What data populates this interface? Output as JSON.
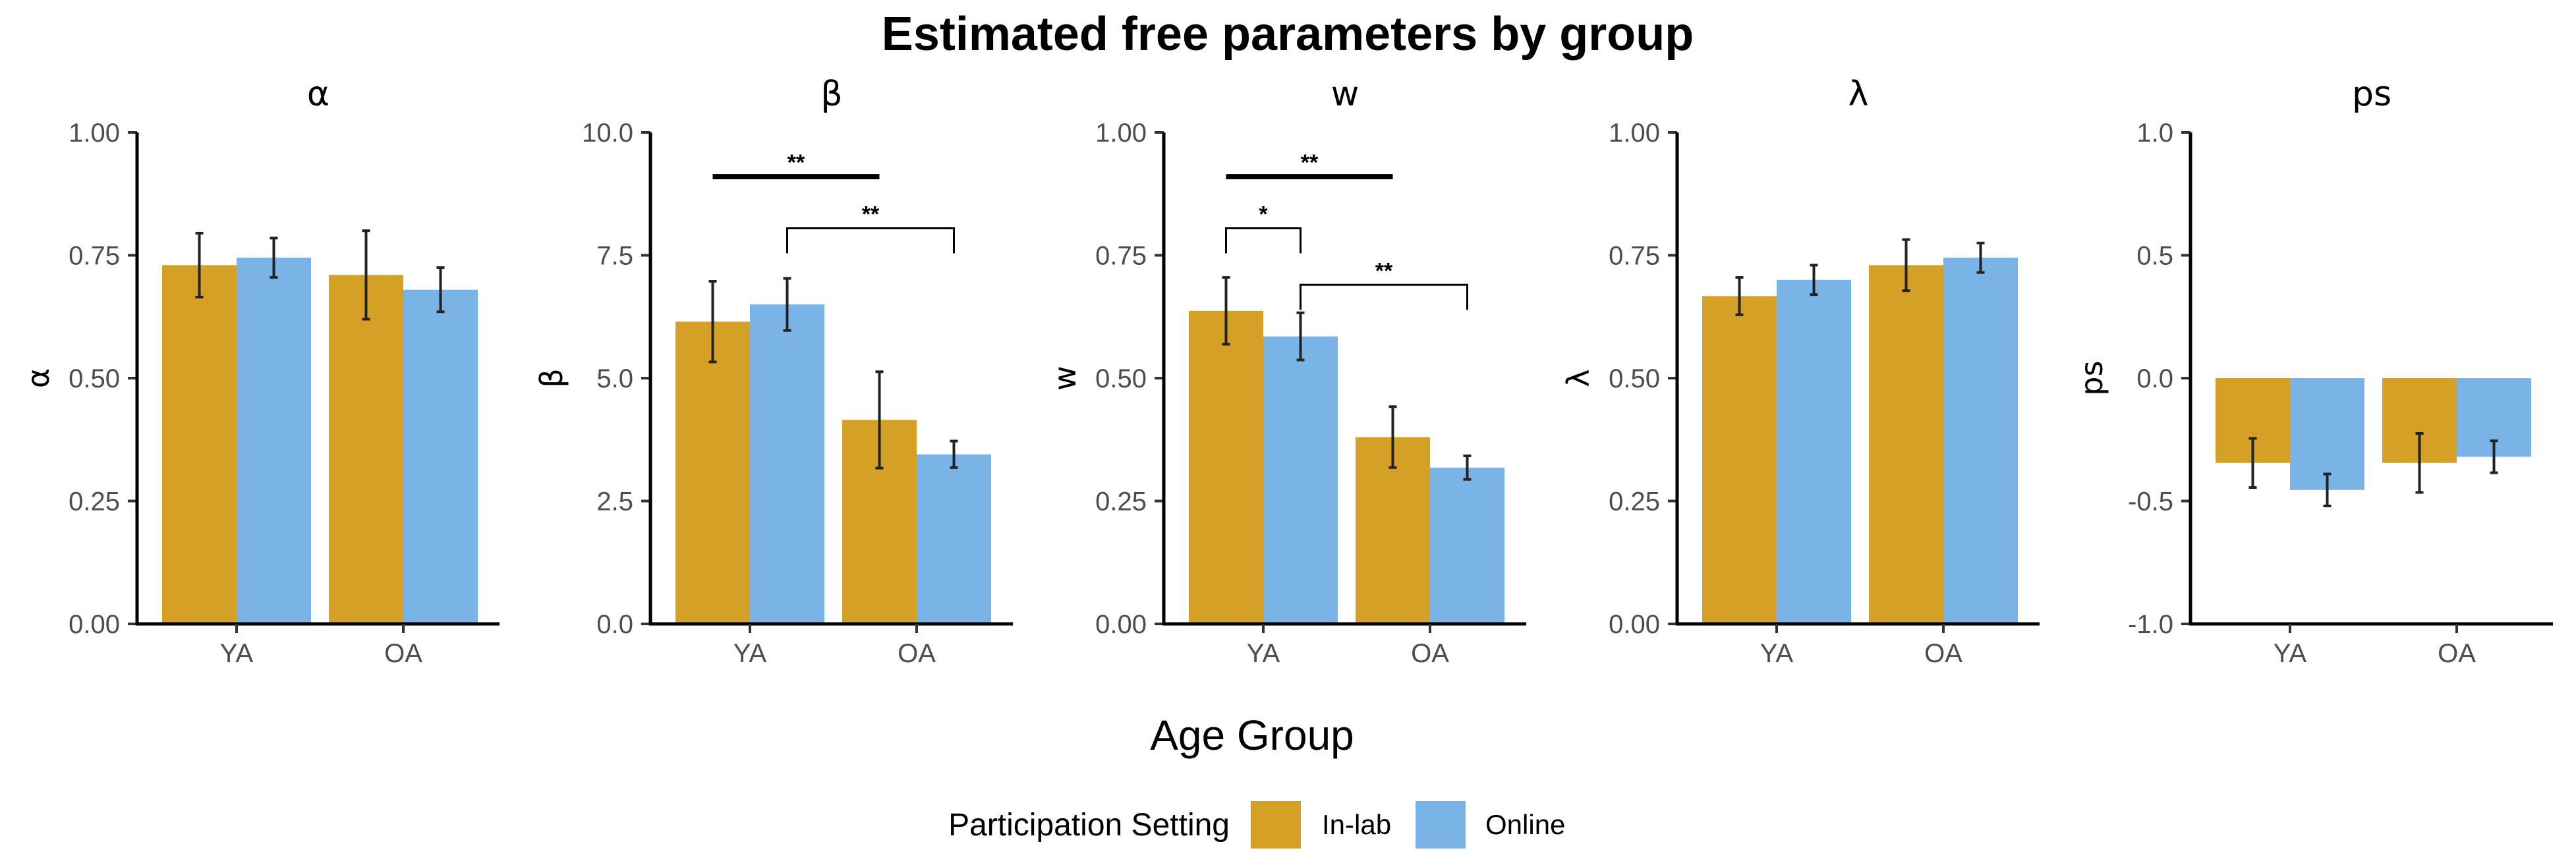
{
  "chart_data": {
    "title": "Estimated free parameters by group",
    "type": "bar",
    "xlabel": "Age Group",
    "legend": {
      "title": "Participation Setting",
      "placement": "bottom",
      "entries": [
        {
          "name": "In-lab",
          "color": "#D4A025"
        },
        {
          "name": "Online",
          "color": "#7AB3E6"
        }
      ]
    },
    "panels": [
      {
        "title": "α",
        "ylabel": "α",
        "ylim": [
          0,
          1
        ],
        "yticks": [
          "0.00",
          "0.25",
          "0.50",
          "0.75",
          "1.00"
        ],
        "categories": [
          "YA",
          "OA"
        ],
        "series": [
          {
            "name": "In-lab",
            "values": [
              0.73,
              0.71
            ],
            "err": [
              0.065,
              0.09
            ]
          },
          {
            "name": "Online",
            "values": [
              0.745,
              0.68
            ],
            "err": [
              0.04,
              0.045
            ]
          }
        ],
        "annotations": []
      },
      {
        "title": "β",
        "ylabel": "β",
        "ylim": [
          0,
          10
        ],
        "yticks": [
          "0.0",
          "2.5",
          "5.0",
          "7.5",
          "10.0"
        ],
        "categories": [
          "YA",
          "OA"
        ],
        "series": [
          {
            "name": "In-lab",
            "values": [
              6.15,
              4.15
            ],
            "err": [
              0.82,
              0.98
            ]
          },
          {
            "name": "Online",
            "values": [
              6.5,
              3.45
            ],
            "err": [
              0.53,
              0.27
            ]
          }
        ],
        "annotations": [
          {
            "label": "**",
            "from": [
              0,
              0
            ],
            "to": [
              1,
              0
            ],
            "y": 9.1,
            "style": "thick"
          },
          {
            "label": "**",
            "from": [
              0,
              1
            ],
            "to": [
              1,
              1
            ],
            "y": 8.05,
            "style": "bracket"
          }
        ]
      },
      {
        "title": "w",
        "ylabel": "w",
        "ylim": [
          0,
          1
        ],
        "yticks": [
          "0.00",
          "0.25",
          "0.50",
          "0.75",
          "1.00"
        ],
        "categories": [
          "YA",
          "OA"
        ],
        "series": [
          {
            "name": "In-lab",
            "values": [
              0.637,
              0.38
            ],
            "err": [
              0.068,
              0.062
            ]
          },
          {
            "name": "Online",
            "values": [
              0.585,
              0.318
            ],
            "err": [
              0.048,
              0.024
            ]
          }
        ],
        "annotations": [
          {
            "label": "**",
            "from": [
              0,
              0
            ],
            "to": [
              1,
              0
            ],
            "y": 0.91,
            "style": "thick"
          },
          {
            "label": "*",
            "from": [
              0,
              0
            ],
            "to": [
              0,
              1
            ],
            "y": 0.805,
            "style": "bracket"
          },
          {
            "label": "**",
            "from": [
              0,
              1
            ],
            "to": [
              1,
              1
            ],
            "y": 0.69,
            "style": "bracket"
          }
        ]
      },
      {
        "title": "λ",
        "ylabel": "λ",
        "ylim": [
          0,
          1
        ],
        "yticks": [
          "0.00",
          "0.25",
          "0.50",
          "0.75",
          "1.00"
        ],
        "categories": [
          "YA",
          "OA"
        ],
        "series": [
          {
            "name": "In-lab",
            "values": [
              0.667,
              0.73
            ],
            "err": [
              0.038,
              0.052
            ]
          },
          {
            "name": "Online",
            "values": [
              0.7,
              0.745
            ],
            "err": [
              0.03,
              0.03
            ]
          }
        ],
        "annotations": []
      },
      {
        "title": "ps",
        "ylabel": "ps",
        "ylim": [
          -1,
          1
        ],
        "yticks": [
          "-1.0",
          "-0.5",
          "0.0",
          "0.5",
          "1.0"
        ],
        "categories": [
          "YA",
          "OA"
        ],
        "series": [
          {
            "name": "In-lab",
            "values": [
              -0.345,
              -0.345
            ],
            "err": [
              0.1,
              0.12
            ]
          },
          {
            "name": "Online",
            "values": [
              -0.455,
              -0.32
            ],
            "err": [
              0.065,
              0.065
            ]
          }
        ],
        "annotations": []
      }
    ]
  }
}
